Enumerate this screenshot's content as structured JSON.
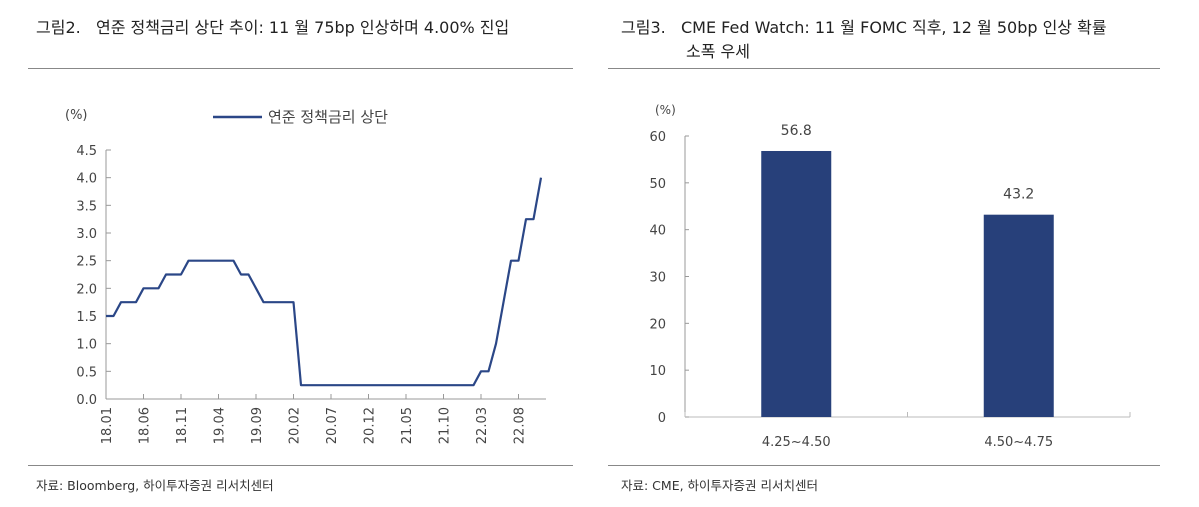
{
  "figures": [
    {
      "number": "그림2.",
      "title": "연준 정책금리 상단 추이: 11 월 75bp 인상하며 4.00% 진입",
      "source": "자료: Bloomberg, 하이투자증권 리서치센터"
    },
    {
      "number": "그림3.",
      "title_line1": "CME Fed Watch: 11 월 FOMC 직후, 12 월 50bp 인상 확률",
      "title_line2": "소폭 우세",
      "source": "자료: CME, 하이투자증권 리서치센터"
    }
  ],
  "chart_data": [
    {
      "type": "line",
      "ylabel": "(%)",
      "ylim": [
        0,
        4.5
      ],
      "yticks": [
        "0.0",
        "0.5",
        "1.0",
        "1.5",
        "2.0",
        "2.5",
        "3.0",
        "3.5",
        "4.0",
        "4.5"
      ],
      "xticks": [
        "18.01",
        "18.06",
        "18.11",
        "19.04",
        "19.09",
        "20.02",
        "20.07",
        "20.12",
        "21.05",
        "21.10",
        "22.03",
        "22.08"
      ],
      "x_start": "18.01",
      "x_end": "22.11",
      "legend_position": "top-center",
      "grid": false,
      "series": [
        {
          "name": "연준 정책금리 상단",
          "color": "#2b4787",
          "values": [
            1.5,
            1.5,
            1.75,
            1.75,
            1.75,
            2.0,
            2.0,
            2.0,
            2.25,
            2.25,
            2.25,
            2.5,
            2.5,
            2.5,
            2.5,
            2.5,
            2.5,
            2.5,
            2.25,
            2.25,
            2.0,
            1.75,
            1.75,
            1.75,
            1.75,
            1.75,
            0.25,
            0.25,
            0.25,
            0.25,
            0.25,
            0.25,
            0.25,
            0.25,
            0.25,
            0.25,
            0.25,
            0.25,
            0.25,
            0.25,
            0.25,
            0.25,
            0.25,
            0.25,
            0.25,
            0.25,
            0.25,
            0.25,
            0.25,
            0.25,
            0.5,
            0.5,
            1.0,
            1.75,
            2.5,
            2.5,
            3.25,
            3.25,
            4.0
          ]
        }
      ]
    },
    {
      "type": "bar",
      "ylabel": "(%)",
      "ylim": [
        0,
        60
      ],
      "yticks": [
        "0",
        "10",
        "20",
        "30",
        "40",
        "50",
        "60"
      ],
      "categories": [
        "4.25~4.50",
        "4.50~4.75"
      ],
      "values": [
        56.8,
        43.2
      ],
      "data_labels": [
        "56.8",
        "43.2"
      ],
      "color": "#27407a",
      "grid": false
    }
  ]
}
